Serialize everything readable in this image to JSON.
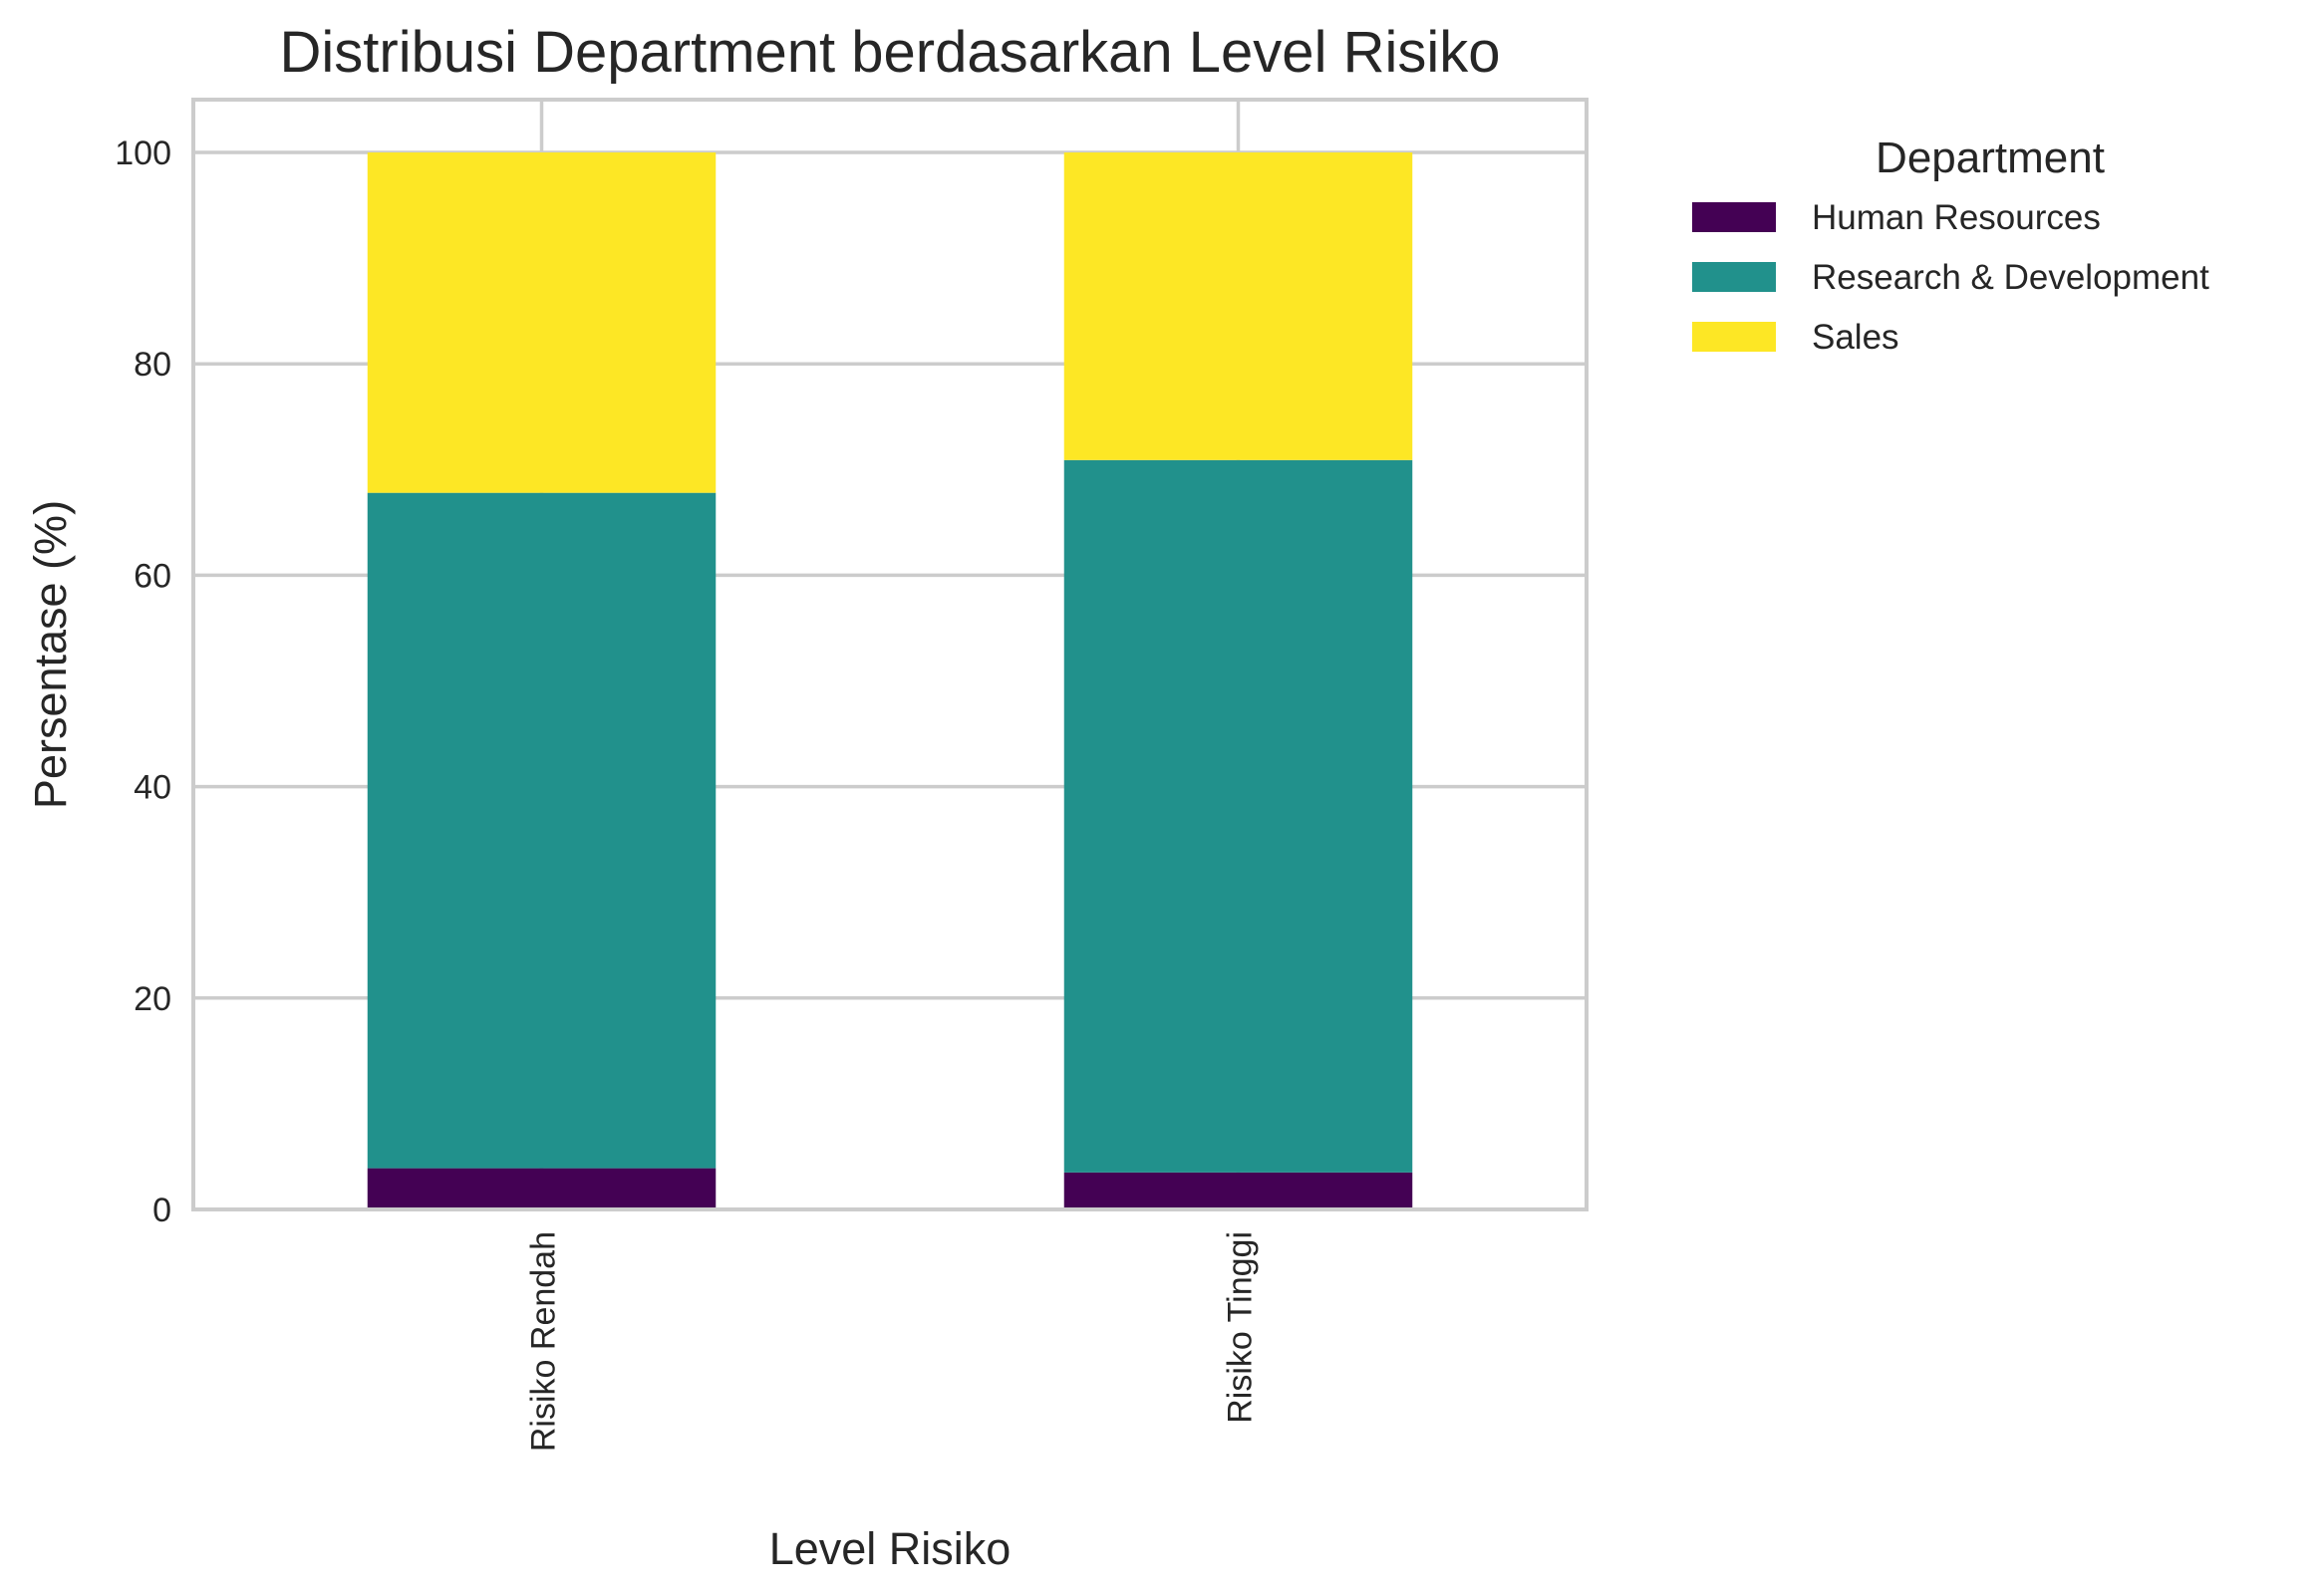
{
  "chart_data": {
    "type": "bar",
    "stacked": true,
    "title": "Distribusi Department berdasarkan Level Risiko",
    "xlabel": "Level Risiko",
    "ylabel": "Persentase (%)",
    "categories": [
      "Risiko Rendah",
      "Risiko Tinggi"
    ],
    "series": [
      {
        "name": "Human Resources",
        "values": [
          3.9,
          3.5
        ],
        "color": "#440154"
      },
      {
        "name": "Research & Development",
        "values": [
          63.9,
          67.4
        ],
        "color": "#21918c"
      },
      {
        "name": "Sales",
        "values": [
          32.2,
          29.1
        ],
        "color": "#fde725"
      }
    ],
    "ylim": [
      0,
      105
    ],
    "yticks": [
      0,
      20,
      40,
      60,
      80,
      100
    ],
    "grid": true,
    "legend": {
      "title": "Department",
      "placement": "outside-right"
    }
  }
}
